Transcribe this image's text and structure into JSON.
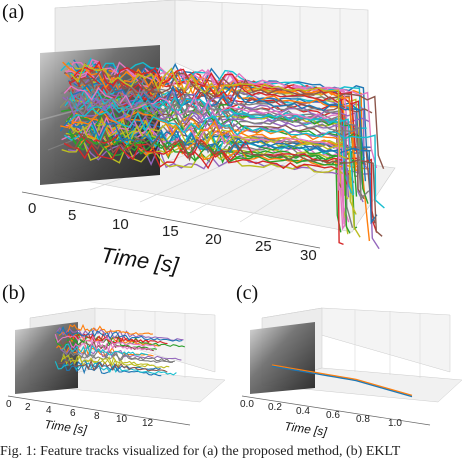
{
  "panels": {
    "a": {
      "label": "(a)",
      "xlabel": "Time [s]",
      "xticks": [
        "0",
        "5",
        "10",
        "15",
        "20",
        "25",
        "30"
      ]
    },
    "b": {
      "label": "(b)",
      "xlabel": "Time [s]",
      "xticks": [
        "0",
        "2",
        "4",
        "6",
        "8",
        "10",
        "12"
      ]
    },
    "c": {
      "label": "(c)",
      "xlabel": "Time [s]",
      "xticks": [
        "0.0",
        "0.2",
        "0.4",
        "0.6",
        "0.8",
        "1.0"
      ]
    }
  },
  "caption": "Fig. 1: Feature tracks visualized for (a) the proposed method, (b) EKLT",
  "colors": [
    "#1f77b4",
    "#ff7f0e",
    "#2ca02c",
    "#d62728",
    "#9467bd",
    "#8c564b",
    "#e377c2",
    "#7f7f7f",
    "#bcbd22",
    "#17becf"
  ]
}
